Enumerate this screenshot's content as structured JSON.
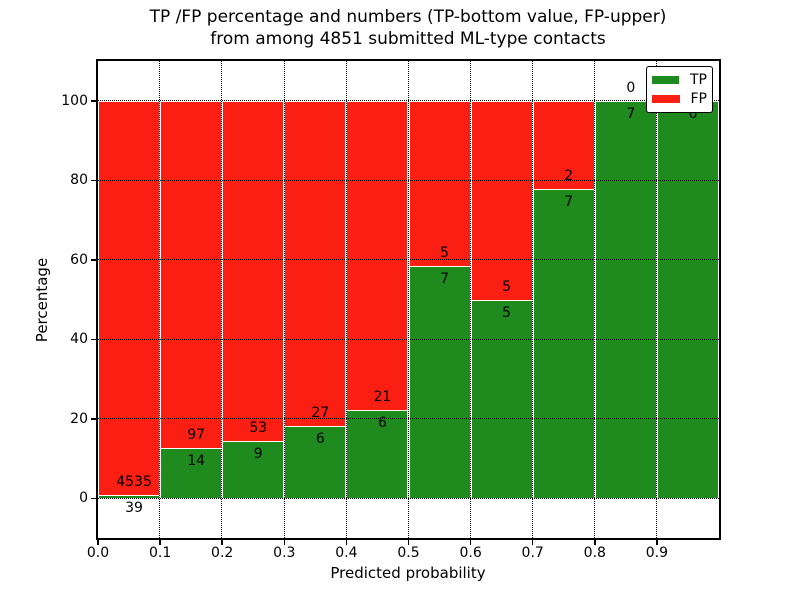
{
  "title": {
    "line1": "TP /FP percentage and numbers (TP-bottom value, FP-upper)",
    "line2": "from among 4851 submitted ML-type contacts"
  },
  "axes": {
    "xlabel": "Predicted probability",
    "ylabel": "Percentage",
    "xticks": [
      {
        "v": 0.0,
        "label": "0.0"
      },
      {
        "v": 0.1,
        "label": "0.1"
      },
      {
        "v": 0.2,
        "label": "0.2"
      },
      {
        "v": 0.3,
        "label": "0.3"
      },
      {
        "v": 0.4,
        "label": "0.4"
      },
      {
        "v": 0.5,
        "label": "0.5"
      },
      {
        "v": 0.6,
        "label": "0.6"
      },
      {
        "v": 0.7,
        "label": "0.7"
      },
      {
        "v": 0.8,
        "label": "0.8"
      },
      {
        "v": 0.9,
        "label": "0.9"
      }
    ],
    "yticks": [
      {
        "v": 0,
        "label": "0"
      },
      {
        "v": 20,
        "label": "20"
      },
      {
        "v": 40,
        "label": "40"
      },
      {
        "v": 60,
        "label": "60"
      },
      {
        "v": 80,
        "label": "80"
      },
      {
        "v": 100,
        "label": "100"
      }
    ]
  },
  "legend": {
    "items": [
      {
        "label": "TP",
        "color": "#1f8b1f"
      },
      {
        "label": "FP",
        "color": "#fb1e13"
      }
    ]
  },
  "chart_data": {
    "type": "bar",
    "stacked": true,
    "normalized": "each bin scaled to 100%; numbers printed are raw counts (TP below boundary, FP above)",
    "title": "TP /FP percentage and numbers (TP-bottom value, FP-upper) from among 4851 submitted ML-type contacts",
    "xlabel": "Predicted probability",
    "ylabel": "Percentage",
    "xlim": [
      0.0,
      1.0
    ],
    "ylim": [
      -10,
      110
    ],
    "grid": "dotted black, on",
    "legend_position": "upper right",
    "series": [
      {
        "name": "TP",
        "color": "#1f8b1f"
      },
      {
        "name": "FP",
        "color": "#fb1e13"
      }
    ],
    "bins": [
      {
        "x0": 0.0,
        "x1": 0.1,
        "tp": 39,
        "fp": 4535,
        "tp_percent": 0.85
      },
      {
        "x0": 0.1,
        "x1": 0.2,
        "tp": 14,
        "fp": 97,
        "tp_percent": 12.61
      },
      {
        "x0": 0.2,
        "x1": 0.3,
        "tp": 9,
        "fp": 53,
        "tp_percent": 14.52
      },
      {
        "x0": 0.3,
        "x1": 0.4,
        "tp": 6,
        "fp": 27,
        "tp_percent": 18.18
      },
      {
        "x0": 0.4,
        "x1": 0.5,
        "tp": 6,
        "fp": 21,
        "tp_percent": 22.22
      },
      {
        "x0": 0.5,
        "x1": 0.6,
        "tp": 7,
        "fp": 5,
        "tp_percent": 58.33
      },
      {
        "x0": 0.6,
        "x1": 0.7,
        "tp": 5,
        "fp": 5,
        "tp_percent": 50.0
      },
      {
        "x0": 0.7,
        "x1": 0.8,
        "tp": 7,
        "fp": 2,
        "tp_percent": 77.78
      },
      {
        "x0": 0.8,
        "x1": 0.9,
        "tp": 7,
        "fp": 0,
        "tp_percent": 100.0
      },
      {
        "x0": 0.9,
        "x1": 1.0,
        "tp": 6,
        "fp": 0,
        "tp_percent": 100.0,
        "fp_label_hidden_by_legend": true
      }
    ]
  }
}
